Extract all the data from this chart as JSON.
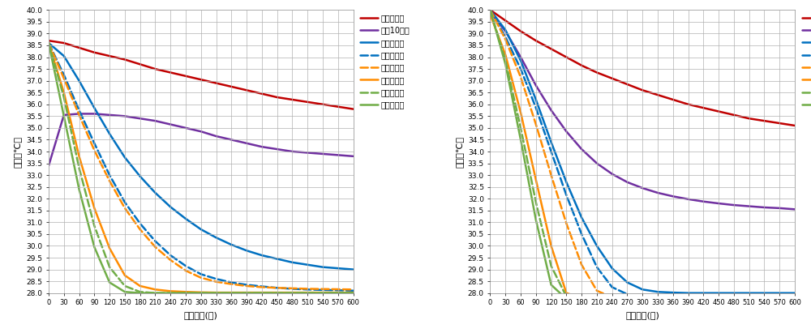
{
  "xlabel": "経過時間(秒)",
  "ylabel": "温度（℃）",
  "ylim": [
    28.0,
    40.0
  ],
  "yticks": [
    28.0,
    28.5,
    29.0,
    29.5,
    30.0,
    30.5,
    31.0,
    31.5,
    32.0,
    32.5,
    33.0,
    33.5,
    34.0,
    34.5,
    35.0,
    35.5,
    36.0,
    36.5,
    37.0,
    37.5,
    38.0,
    38.5,
    39.0,
    39.5,
    40.0
  ],
  "xticks": [
    0,
    30,
    60,
    90,
    120,
    150,
    180,
    210,
    240,
    270,
    300,
    330,
    360,
    390,
    420,
    450,
    480,
    510,
    540,
    570,
    600
  ],
  "xtick_labels": [
    "0",
    "30",
    "60",
    "90",
    "120",
    "150",
    "180",
    "210",
    "240",
    "270",
    "300",
    "330",
    "360",
    "390",
    "420",
    "450",
    "480",
    "510",
    "540",
    "570",
    "600"
  ],
  "legend_labels": [
    "スマホ単体",
    "常源10円玉",
    "平置き短手",
    "平置き長手",
    "横置き正面",
    "横置き側面",
    "縦置き正面",
    "縦置き側面"
  ],
  "colors": [
    "#c00000",
    "#7030a0",
    "#0070c0",
    "#0070c0",
    "#ff8c00",
    "#ff8c00",
    "#70ad47",
    "#70ad47"
  ],
  "linestyles": [
    "-",
    "-",
    "-",
    "--",
    "--",
    "-",
    "--",
    "-"
  ],
  "linewidths": [
    1.8,
    1.8,
    1.8,
    1.8,
    1.8,
    1.8,
    1.8,
    1.8
  ],
  "left_chart": {
    "t": [
      0,
      30,
      60,
      90,
      120,
      150,
      180,
      210,
      240,
      270,
      300,
      330,
      360,
      390,
      420,
      450,
      480,
      510,
      540,
      570,
      600
    ],
    "smartphone": [
      38.7,
      38.6,
      38.4,
      38.2,
      38.05,
      37.9,
      37.7,
      37.5,
      37.35,
      37.2,
      37.05,
      36.9,
      36.75,
      36.6,
      36.45,
      36.3,
      36.2,
      36.1,
      36.0,
      35.9,
      35.8
    ],
    "coin_room": [
      33.4,
      35.55,
      35.6,
      35.6,
      35.55,
      35.5,
      35.4,
      35.3,
      35.15,
      35.0,
      34.85,
      34.65,
      34.5,
      34.35,
      34.2,
      34.1,
      34.0,
      33.95,
      33.9,
      33.85,
      33.8
    ],
    "flat_short": [
      38.6,
      38.05,
      37.0,
      35.85,
      34.75,
      33.75,
      32.95,
      32.25,
      31.65,
      31.15,
      30.7,
      30.35,
      30.05,
      29.8,
      29.6,
      29.45,
      29.3,
      29.2,
      29.1,
      29.05,
      29.0
    ],
    "flat_long": [
      38.6,
      37.25,
      35.75,
      34.35,
      33.0,
      31.85,
      30.95,
      30.2,
      29.6,
      29.15,
      28.8,
      28.6,
      28.45,
      28.35,
      28.28,
      28.22,
      28.18,
      28.15,
      28.13,
      28.12,
      28.1
    ],
    "horiz_front": [
      38.6,
      37.1,
      35.55,
      34.05,
      32.75,
      31.6,
      30.7,
      29.95,
      29.4,
      28.95,
      28.65,
      28.48,
      28.38,
      28.3,
      28.25,
      28.22,
      28.2,
      28.18,
      28.17,
      28.16,
      28.15
    ],
    "horiz_side": [
      38.6,
      36.5,
      33.8,
      31.6,
      29.9,
      28.75,
      28.3,
      28.15,
      28.08,
      28.05,
      28.03,
      28.02,
      28.02,
      28.02,
      28.02,
      28.02,
      28.02,
      28.02,
      28.02,
      28.02,
      28.02
    ],
    "vert_front": [
      38.6,
      36.3,
      33.3,
      30.85,
      29.1,
      28.3,
      28.05,
      28.0,
      28.0,
      28.0,
      28.0,
      28.0,
      28.0,
      28.0,
      28.0,
      28.0,
      28.0,
      28.0,
      28.0,
      28.0,
      28.0
    ],
    "vert_side": [
      38.6,
      35.5,
      32.4,
      29.95,
      28.45,
      28.05,
      28.0,
      28.0,
      28.0,
      28.0,
      28.0,
      28.0,
      28.0,
      28.0,
      28.0,
      28.0,
      28.0,
      28.0,
      28.0,
      28.0,
      28.0
    ]
  },
  "right_chart": {
    "t": [
      0,
      30,
      60,
      90,
      120,
      150,
      180,
      210,
      240,
      270,
      300,
      330,
      360,
      390,
      420,
      450,
      480,
      510,
      540,
      570,
      600
    ],
    "smartphone": [
      40.0,
      39.55,
      39.1,
      38.7,
      38.35,
      38.0,
      37.65,
      37.35,
      37.1,
      36.85,
      36.6,
      36.4,
      36.2,
      36.0,
      35.85,
      35.7,
      35.55,
      35.4,
      35.3,
      35.2,
      35.1
    ],
    "coin_room": [
      39.9,
      39.1,
      38.0,
      36.8,
      35.75,
      34.85,
      34.1,
      33.5,
      33.05,
      32.7,
      32.45,
      32.25,
      32.1,
      31.98,
      31.88,
      31.8,
      31.73,
      31.68,
      31.63,
      31.6,
      31.55
    ],
    "flat_short": [
      40.0,
      39.15,
      37.85,
      36.2,
      34.4,
      32.7,
      31.2,
      30.0,
      29.05,
      28.45,
      28.15,
      28.05,
      28.02,
      28.0,
      28.0,
      28.0,
      28.0,
      28.0,
      28.0,
      28.0,
      28.0
    ],
    "flat_long": [
      40.0,
      38.85,
      37.5,
      35.85,
      34.0,
      32.15,
      30.5,
      29.1,
      28.25,
      27.95,
      27.85,
      27.82,
      27.8,
      27.8,
      27.8,
      27.8,
      27.8,
      27.8,
      27.8,
      27.8,
      27.8
    ],
    "horiz_front": [
      40.0,
      38.75,
      37.15,
      35.15,
      33.0,
      30.95,
      29.2,
      28.1,
      27.82,
      27.78,
      27.77,
      27.77,
      27.77,
      27.77,
      27.77,
      27.77,
      27.77,
      27.77,
      27.77,
      27.77,
      27.77
    ],
    "horiz_side": [
      39.8,
      38.1,
      35.65,
      32.8,
      30.0,
      28.0,
      27.78,
      27.75,
      27.75,
      27.75,
      27.75,
      27.75,
      27.75,
      27.75,
      27.75,
      27.75,
      27.75,
      27.75,
      27.75,
      27.75,
      27.75
    ],
    "vert_front": [
      40.0,
      37.85,
      35.0,
      31.85,
      29.15,
      27.85,
      27.75,
      27.75,
      27.75,
      27.75,
      27.75,
      27.75,
      27.75,
      27.75,
      27.75,
      27.75,
      27.75,
      27.75,
      27.75,
      27.75,
      27.75
    ],
    "vert_side": [
      40.0,
      37.7,
      34.5,
      31.1,
      28.35,
      27.75,
      27.72,
      27.72,
      27.72,
      27.72,
      27.72,
      27.72,
      27.72,
      27.72,
      27.72,
      27.72,
      27.72,
      27.72,
      27.72,
      27.72,
      27.72
    ]
  },
  "bg_color": "#ffffff",
  "grid_color": "#b0b0b0"
}
